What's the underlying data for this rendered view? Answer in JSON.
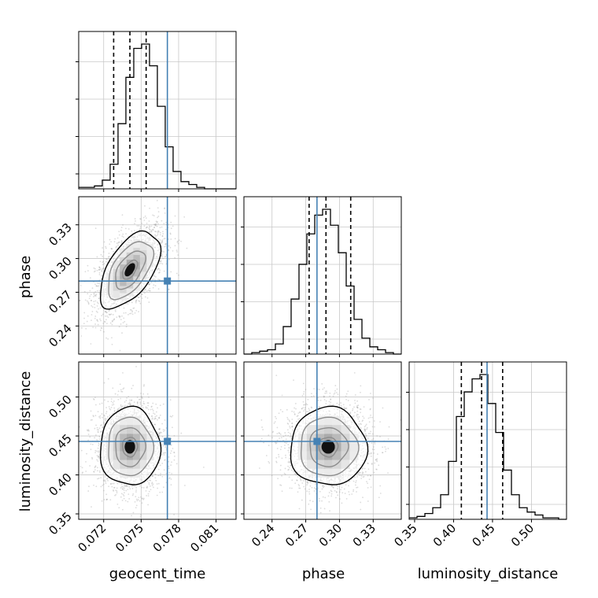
{
  "chart_data": {
    "type": "corner",
    "parameters": [
      "geocent_time",
      "phase",
      "luminosity_distance"
    ],
    "ticks": {
      "geocent_time": [
        "0.072",
        "0.075",
        "0.078",
        "0.081"
      ],
      "phase": [
        "0.24",
        "0.27",
        "0.30",
        "0.33"
      ],
      "luminosity_distance": [
        "0.35",
        "0.40",
        "0.45",
        "0.50"
      ]
    },
    "ranges": {
      "geocent_time": [
        0.07,
        0.0826
      ],
      "phase": [
        0.215,
        0.355
      ],
      "luminosity_distance": [
        0.343,
        0.545
      ]
    },
    "marginals": [
      {
        "parameter": "geocent_time",
        "quantiles": [
          0.0728,
          0.0741,
          0.0754
        ],
        "truth": 0.0771,
        "bins": [
          0.07,
          0.0826
        ],
        "counts": [
          1,
          1,
          2,
          6,
          17,
          45,
          77,
          97,
          100,
          85,
          57,
          29,
          12,
          5,
          3,
          1,
          0,
          0,
          0,
          0
        ]
      },
      {
        "parameter": "phase",
        "quantiles": [
          0.273,
          0.288,
          0.31
        ],
        "truth": 0.28,
        "bins": [
          0.215,
          0.355
        ],
        "counts": [
          0,
          1,
          2,
          3,
          7,
          19,
          38,
          62,
          83,
          96,
          100,
          89,
          70,
          47,
          24,
          11,
          5,
          3,
          1,
          0
        ]
      },
      {
        "parameter": "luminosity_distance",
        "quantiles": [
          0.41,
          0.436,
          0.463
        ],
        "truth": 0.443,
        "bins": [
          0.343,
          0.545
        ],
        "counts": [
          1,
          2,
          4,
          8,
          17,
          40,
          71,
          88,
          97,
          100,
          80,
          60,
          34,
          17,
          8,
          5,
          3,
          1,
          1,
          0
        ]
      }
    ],
    "joint": [
      {
        "x": "geocent_time",
        "y": "phase",
        "center": [
          0.0741,
          0.29
        ],
        "sigma": [
          0.0012,
          0.017
        ],
        "rho": 0.55,
        "contour_levels_sigma": [
          0.5,
          1.0,
          1.5,
          2.0
        ],
        "truth": [
          0.0771,
          0.28
        ]
      },
      {
        "x": "geocent_time",
        "y": "luminosity_distance",
        "center": [
          0.0741,
          0.436
        ],
        "sigma": [
          0.0012,
          0.025
        ],
        "rho": 0.0,
        "contour_levels_sigma": [
          0.5,
          1.0,
          1.5,
          2.0
        ],
        "truth": [
          0.0771,
          0.443
        ]
      },
      {
        "x": "phase",
        "y": "luminosity_distance",
        "center": [
          0.29,
          0.436
        ],
        "sigma": [
          0.017,
          0.025
        ],
        "rho": 0.0,
        "contour_levels_sigma": [
          0.5,
          1.0,
          1.5,
          2.0
        ],
        "truth": [
          0.28,
          0.443
        ]
      }
    ],
    "grid": true,
    "colors": {
      "truth": "#4682b4",
      "hist": "#000000",
      "grid": "#c8c8c8",
      "points": "#9a9a9a"
    }
  }
}
